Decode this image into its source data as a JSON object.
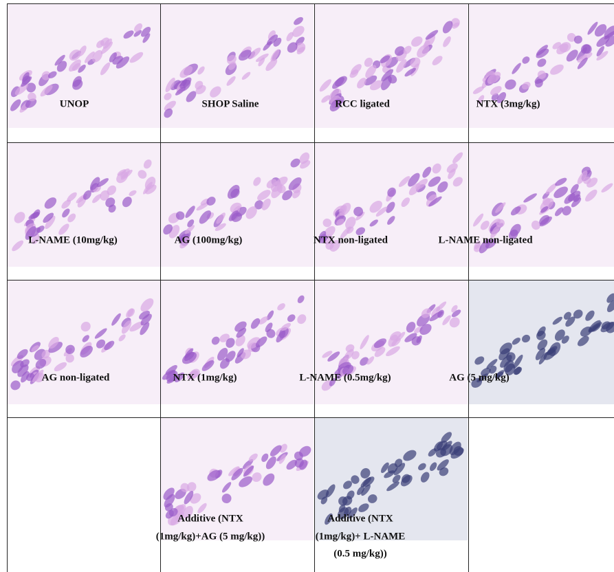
{
  "panels": [
    {
      "label": [
        "UNOP"
      ]
    },
    {
      "label": [
        "SHOP Saline"
      ]
    },
    {
      "label": [
        "RCC ligated"
      ]
    },
    {
      "label": [
        "NTX (3mg/kg)"
      ]
    },
    {
      "label": [
        "L-NAME (10mg/kg)"
      ]
    },
    {
      "label": [
        "AG (100mg/kg)"
      ]
    },
    {
      "label": [
        "NTX non-ligated"
      ]
    },
    {
      "label": [
        "L-NAME non-ligated"
      ]
    },
    {
      "label": [
        "AG non-ligated"
      ]
    },
    {
      "label": [
        "NTX (1mg/kg)"
      ]
    },
    {
      "label": [
        "L-NAME (0.5mg/kg)"
      ]
    },
    {
      "label": [
        "AG (5 mg/kg)"
      ]
    },
    {
      "label": [
        "Additive (NTX",
        "(1mg/kg)+AG (5 mg/kg))"
      ]
    },
    {
      "label": [
        "Additive (NTX",
        "(1mg/kg)+ L-NAME",
        "(0.5 mg/kg))"
      ]
    }
  ]
}
